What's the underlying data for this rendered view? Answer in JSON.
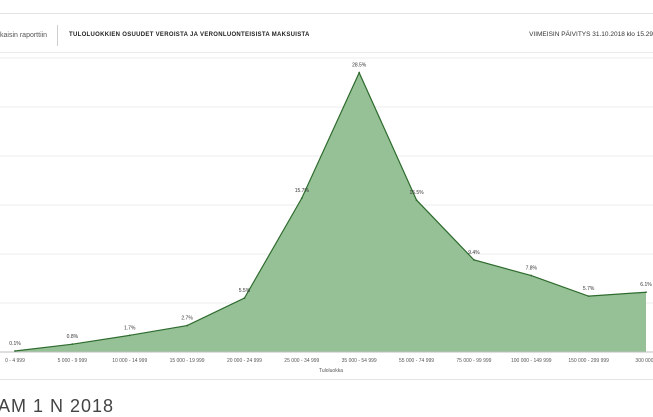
{
  "header": {
    "back_label": "kaisin raporttiin",
    "title": "TULOLUOKKIEN OSUUDET VEROISTA JA VERONLUONTEISISTA MAKSUISTA",
    "updated": "VIIMEISIN PÄIVITYS 31.10.2018 klo 15.29"
  },
  "cutoff_text": "AM 1 N 2018",
  "colors": {
    "fill": "#96c196",
    "line": "#2e6b2e",
    "grid": "#ececec"
  },
  "chart_data": {
    "type": "area",
    "categories": [
      "0 - 4 999",
      "5 000 - 9 999",
      "10 000 - 14 999",
      "15 000 - 19 999",
      "20 000 - 24 999",
      "25 000 - 34 999",
      "35 000 - 54 999",
      "55 000 - 74 999",
      "75 000 - 99 999",
      "100 000 - 149 999",
      "150 000 - 299 999",
      "300 000 -"
    ],
    "values": [
      0.1,
      0.8,
      1.7,
      2.7,
      5.5,
      15.7,
      28.5,
      15.5,
      9.4,
      7.8,
      5.7,
      6.1
    ],
    "labels": [
      "0.1%",
      "0.8%",
      "1.7%",
      "2.7%",
      "5.5%",
      "15.7%",
      "28.5%",
      "15.5%",
      "9.4%",
      "7.8%",
      "5.7%",
      "6.1%"
    ],
    "xlabel": "Tuloluokka",
    "ylabel": "",
    "ylim": [
      0,
      30
    ],
    "grid": true
  }
}
